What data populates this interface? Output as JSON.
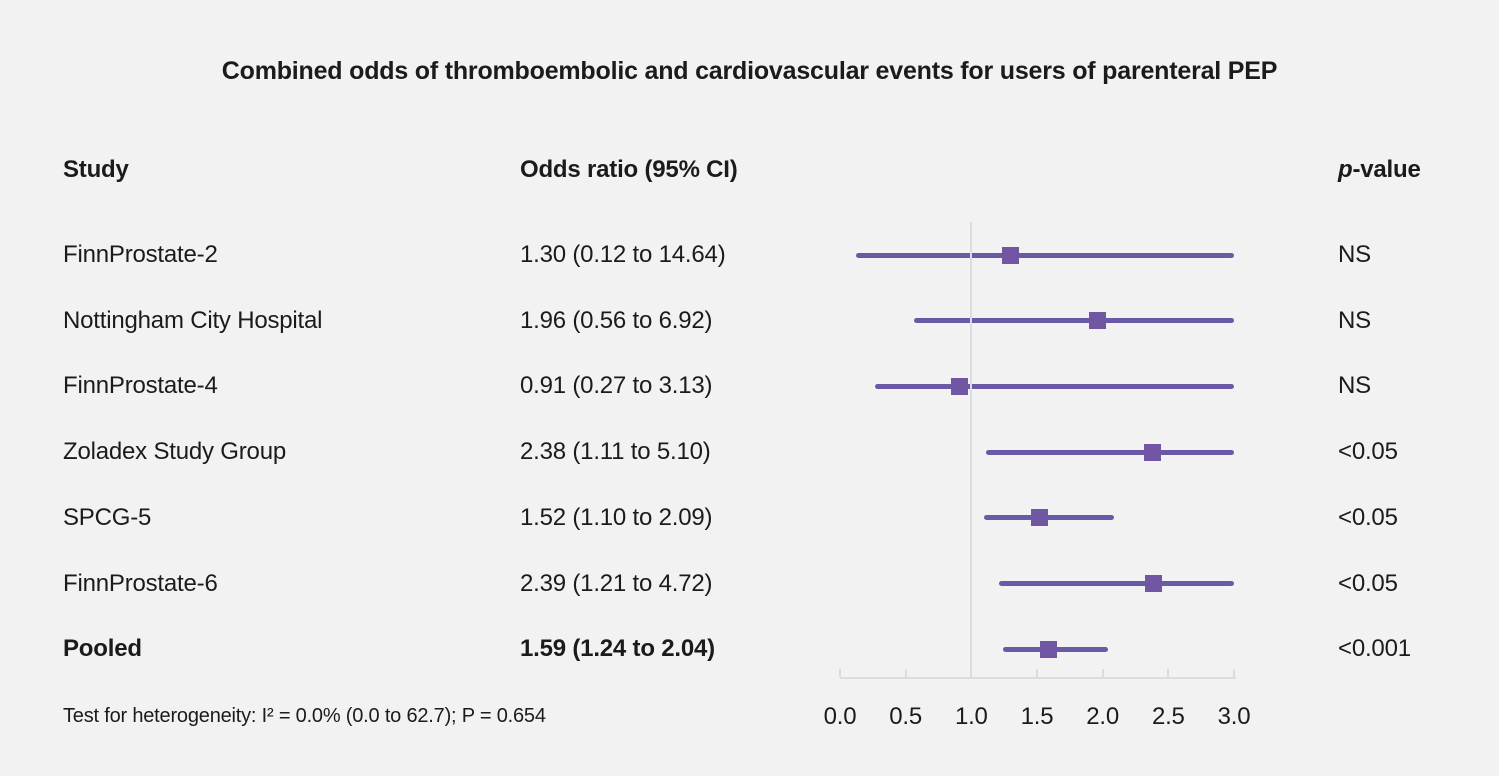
{
  "title": "Combined odds of thromboembolic and cardiovascular events for users of parenteral PEP",
  "columns": {
    "study": "Study",
    "or_ci": "Odds ratio (95% CI)",
    "p_italic": "p",
    "p_rest": "-value"
  },
  "footer": "Test for heterogeneity: I² = 0.0% (0.0 to 62.7); P = 0.654",
  "colors": {
    "background": "#f2f2f3",
    "text": "#1b1b1b",
    "ci_line": "#6a59a6",
    "marker": "#7156a4",
    "ref_line": "#d9dde2",
    "axis": "#d9dde2"
  },
  "chart_data": {
    "type": "forest",
    "title": "Combined odds of thromboembolic and cardiovascular events for users of parenteral PEP",
    "xlabel": "",
    "xlim": [
      0.0,
      3.0
    ],
    "reference_line": 1.0,
    "axis_tick_labels": [
      "0.0",
      "0.5",
      "1.0",
      "1.5",
      "2.0",
      "2.5",
      "3.0"
    ],
    "axis_tick_values": [
      0.0,
      0.5,
      1.0,
      1.5,
      2.0,
      2.5,
      3.0
    ],
    "rows": [
      {
        "study": "FinnProstate-2",
        "or": 1.3,
        "ci_low": 0.12,
        "ci_high": 14.64,
        "or_label": "1.30 (0.12 to 14.64)",
        "p": "NS",
        "bold": false
      },
      {
        "study": "Nottingham City Hospital",
        "or": 1.96,
        "ci_low": 0.56,
        "ci_high": 6.92,
        "or_label": "1.96 (0.56 to 6.92)",
        "p": "NS",
        "bold": false
      },
      {
        "study": "FinnProstate-4",
        "or": 0.91,
        "ci_low": 0.27,
        "ci_high": 3.13,
        "or_label": "0.91 (0.27 to 3.13)",
        "p": "NS",
        "bold": false
      },
      {
        "study": "Zoladex Study Group",
        "or": 2.38,
        "ci_low": 1.11,
        "ci_high": 5.1,
        "or_label": "2.38 (1.11 to 5.10)",
        "p": "<0.05",
        "bold": false
      },
      {
        "study": "SPCG-5",
        "or": 1.52,
        "ci_low": 1.1,
        "ci_high": 2.09,
        "or_label": "1.52 (1.10 to 2.09)",
        "p": "<0.05",
        "bold": false
      },
      {
        "study": "FinnProstate-6",
        "or": 2.39,
        "ci_low": 1.21,
        "ci_high": 4.72,
        "or_label": "2.39 (1.21 to 4.72)",
        "p": "<0.05",
        "bold": false
      },
      {
        "study": "Pooled",
        "or": 1.59,
        "ci_low": 1.24,
        "ci_high": 2.04,
        "or_label": "1.59 (1.24 to 2.04)",
        "p": "<0.001",
        "bold": true
      }
    ]
  }
}
